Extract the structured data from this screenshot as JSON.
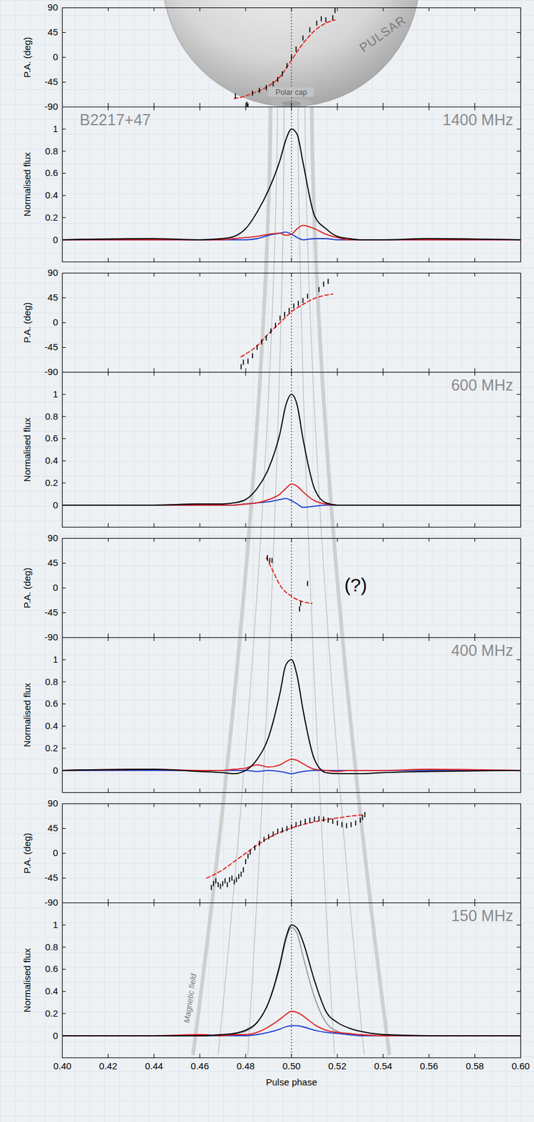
{
  "illustration": {
    "sphere_label": "PULSAR",
    "cap_label": "Polar cap",
    "field_label": "Magnetic field"
  },
  "chart_data": [
    {
      "type": "scatter",
      "ylabel": "P.A. (deg)",
      "xlim": [
        0.4,
        0.6
      ],
      "xticks": [
        {
          "value": 0.4,
          "label": "0.40"
        },
        0.42,
        0.44,
        0.46,
        0.48,
        {
          "value": 0.5,
          "label": "0.50"
        },
        0.52,
        0.54,
        0.56,
        0.58,
        {
          "value": 0.6,
          "label": "0.60"
        }
      ],
      "ylim": [
        -90,
        90
      ],
      "yticks": [
        -90,
        -45,
        0,
        45,
        90
      ],
      "tick_labels": "y",
      "vline": 0.5,
      "series": [
        {
          "type": "scatter",
          "color": "#000000",
          "marker": "tick",
          "x": [
            0.4755,
            0.4805,
            0.481,
            0.483,
            0.486,
            0.489,
            0.492,
            0.494,
            0.496,
            0.498,
            0.5,
            0.502,
            0.505,
            0.508,
            0.511,
            0.513,
            0.515,
            0.518,
            0.519
          ],
          "values": [
            -70,
            -85,
            -88,
            -65,
            -60,
            -55,
            -48,
            -40,
            -30,
            -15,
            0,
            15,
            35,
            50,
            62,
            70,
            68,
            72,
            85
          ]
        },
        {
          "type": "line",
          "color": "#e02020",
          "line_style": "dashed",
          "x": [
            0.475,
            0.48,
            0.485,
            0.49,
            0.495,
            0.5,
            0.505,
            0.51,
            0.515,
            0.519
          ],
          "values": [
            -75,
            -70,
            -62,
            -52,
            -35,
            -5,
            25,
            48,
            62,
            68
          ]
        }
      ]
    },
    {
      "type": "line",
      "title": "1400 MHz",
      "ylabel": "Normalised flux",
      "annotations": [
        {
          "text": "B2217+47"
        }
      ],
      "xlim": [
        0.4,
        0.6
      ],
      "xticks": [
        {
          "value": 0.4,
          "label": "0.40"
        },
        0.42,
        0.44,
        0.46,
        0.48,
        {
          "value": 0.5,
          "label": "0.50"
        },
        0.52,
        0.54,
        0.56,
        0.58,
        {
          "value": 0.6,
          "label": "0.60"
        }
      ],
      "ylim": [
        -0.2,
        1.2
      ],
      "yticks": [
        0,
        0.2,
        0.4,
        0.6,
        0.8,
        1
      ],
      "tick_labels": "y",
      "vline": 0.5,
      "x": [
        0.4,
        0.44,
        0.46,
        0.47,
        0.475,
        0.48,
        0.485,
        0.49,
        0.495,
        0.4975,
        0.5,
        0.5025,
        0.505,
        0.51,
        0.515,
        0.52,
        0.525,
        0.53,
        0.54,
        0.56,
        0.6
      ],
      "series": [
        {
          "color": "#000000",
          "values": [
            0,
            0.01,
            0,
            0.01,
            0.03,
            0.1,
            0.25,
            0.45,
            0.72,
            0.9,
            1.0,
            0.95,
            0.7,
            0.22,
            0.1,
            0.03,
            0.01,
            0,
            0,
            0.01,
            0
          ]
        },
        {
          "color": "#e02020",
          "values": [
            0,
            0,
            0,
            0,
            0.01,
            0.02,
            0.03,
            0.05,
            0.06,
            0.04,
            0.05,
            0.1,
            0.13,
            0.1,
            0.05,
            0.02,
            0,
            0,
            0,
            0,
            0
          ]
        },
        {
          "color": "#1c3fd0",
          "values": [
            0,
            0,
            0,
            0,
            0,
            0,
            0.01,
            0.04,
            0.06,
            0.07,
            0.05,
            0.02,
            0,
            0.01,
            0.01,
            0,
            0,
            0,
            0,
            0,
            0
          ]
        }
      ]
    },
    {
      "type": "scatter",
      "ylabel": "P.A. (deg)",
      "xlim": [
        0.4,
        0.6
      ],
      "xticks": [
        {
          "value": 0.4,
          "label": "0.40"
        },
        0.42,
        0.44,
        0.46,
        0.48,
        {
          "value": 0.5,
          "label": "0.50"
        },
        0.52,
        0.54,
        0.56,
        0.58,
        {
          "value": 0.6,
          "label": "0.60"
        }
      ],
      "ylim": [
        -90,
        90
      ],
      "yticks": [
        -90,
        -45,
        0,
        45,
        90
      ],
      "tick_labels": "y",
      "vline": 0.5,
      "series": [
        {
          "type": "scatter",
          "color": "#000000",
          "marker": "tick",
          "x": [
            0.478,
            0.479,
            0.481,
            0.483,
            0.485,
            0.487,
            0.489,
            0.491,
            0.493,
            0.495,
            0.497,
            0.499,
            0.501,
            0.503,
            0.505,
            0.507,
            0.512,
            0.514,
            0.516
          ],
          "values": [
            -80,
            -72,
            -70,
            -60,
            -45,
            -35,
            -28,
            -15,
            -5,
            8,
            15,
            22,
            30,
            35,
            40,
            48,
            60,
            70,
            75
          ]
        },
        {
          "type": "line",
          "color": "#e02020",
          "line_style": "dashed",
          "x": [
            0.478,
            0.485,
            0.49,
            0.495,
            0.5,
            0.505,
            0.51,
            0.518
          ],
          "values": [
            -62,
            -42,
            -20,
            0,
            20,
            33,
            44,
            52
          ]
        }
      ]
    },
    {
      "type": "line",
      "title": "600 MHz",
      "ylabel": "Normalised flux",
      "xlim": [
        0.4,
        0.6
      ],
      "xticks": [
        {
          "value": 0.4,
          "label": "0.40"
        },
        0.42,
        0.44,
        0.46,
        0.48,
        {
          "value": 0.5,
          "label": "0.50"
        },
        0.52,
        0.54,
        0.56,
        0.58,
        {
          "value": 0.6,
          "label": "0.60"
        }
      ],
      "ylim": [
        -0.2,
        1.2
      ],
      "yticks": [
        0,
        0.2,
        0.4,
        0.6,
        0.8,
        1
      ],
      "tick_labels": "y",
      "vline": 0.5,
      "x": [
        0.4,
        0.44,
        0.46,
        0.47,
        0.475,
        0.48,
        0.485,
        0.49,
        0.495,
        0.4975,
        0.5,
        0.5025,
        0.505,
        0.51,
        0.515,
        0.52,
        0.525,
        0.53,
        0.54,
        0.56,
        0.6
      ],
      "series": [
        {
          "color": "#000000",
          "values": [
            0,
            0,
            0.01,
            0.01,
            0.02,
            0.05,
            0.15,
            0.33,
            0.65,
            0.9,
            1.0,
            0.9,
            0.6,
            0.15,
            0.02,
            0,
            0,
            0,
            0,
            0,
            0
          ]
        },
        {
          "color": "#e02020",
          "values": [
            0,
            0,
            0,
            0,
            0,
            0.01,
            0.02,
            0.05,
            0.1,
            0.15,
            0.19,
            0.17,
            0.12,
            0.04,
            0.01,
            0,
            0,
            0,
            0,
            0,
            0
          ]
        },
        {
          "color": "#1c3fd0",
          "values": [
            0,
            0,
            0,
            0,
            0,
            0.01,
            0.02,
            0.03,
            0.05,
            0.06,
            0.04,
            0.01,
            -0.02,
            -0.01,
            0,
            0,
            0,
            0,
            0,
            0,
            0
          ]
        }
      ]
    },
    {
      "type": "scatter",
      "ylabel": "P.A. (deg)",
      "annotations": [
        {
          "text": "(?)",
          "x": 0.528,
          "y": 5
        }
      ],
      "xlim": [
        0.4,
        0.6
      ],
      "xticks": [
        {
          "value": 0.4,
          "label": "0.40"
        },
        0.42,
        0.44,
        0.46,
        0.48,
        {
          "value": 0.5,
          "label": "0.50"
        },
        0.52,
        0.54,
        0.56,
        0.58,
        {
          "value": 0.6,
          "label": "0.60"
        }
      ],
      "ylim": [
        -90,
        90
      ],
      "yticks": [
        -90,
        -45,
        0,
        45,
        90
      ],
      "tick_labels": "y",
      "vline": 0.5,
      "series": [
        {
          "type": "scatter",
          "color": "#000000",
          "marker": "tick",
          "x": [
            0.4895,
            0.4905,
            0.4915,
            0.5035,
            0.504,
            0.507
          ],
          "values": [
            55,
            50,
            50,
            -38,
            -28,
            8
          ]
        },
        {
          "type": "line",
          "color": "#e02020",
          "line_style": "dashed",
          "x": [
            0.489,
            0.492,
            0.495,
            0.5,
            0.505,
            0.509
          ],
          "values": [
            55,
            30,
            5,
            -15,
            -25,
            -28
          ]
        }
      ]
    },
    {
      "type": "line",
      "title": "400 MHz",
      "ylabel": "Normalised flux",
      "xlim": [
        0.4,
        0.6
      ],
      "xticks": [
        {
          "value": 0.4,
          "label": "0.40"
        },
        0.42,
        0.44,
        0.46,
        0.48,
        {
          "value": 0.5,
          "label": "0.50"
        },
        0.52,
        0.54,
        0.56,
        0.58,
        {
          "value": 0.6,
          "label": "0.60"
        }
      ],
      "ylim": [
        -0.2,
        1.2
      ],
      "yticks": [
        0,
        0.2,
        0.4,
        0.6,
        0.8,
        1
      ],
      "tick_labels": "y",
      "vline": 0.5,
      "x": [
        0.4,
        0.44,
        0.46,
        0.47,
        0.475,
        0.48,
        0.485,
        0.49,
        0.495,
        0.4975,
        0.5,
        0.5025,
        0.505,
        0.51,
        0.515,
        0.52,
        0.525,
        0.53,
        0.54,
        0.56,
        0.6
      ],
      "series": [
        {
          "color": "#000000",
          "values": [
            0,
            0.01,
            -0.01,
            -0.02,
            -0.03,
            0,
            0.1,
            0.3,
            0.7,
            0.95,
            1.0,
            0.85,
            0.55,
            0.1,
            -0.02,
            -0.03,
            -0.03,
            -0.03,
            -0.02,
            -0.01,
            0
          ]
        },
        {
          "color": "#e02020",
          "values": [
            0,
            0.01,
            0,
            0,
            0.01,
            0.02,
            0.05,
            0.03,
            0.05,
            0.08,
            0.1,
            0.09,
            0.06,
            0.01,
            0,
            -0.01,
            0,
            0,
            0,
            0.01,
            0
          ]
        },
        {
          "color": "#1c3fd0",
          "values": [
            0,
            0,
            0,
            0,
            0,
            0,
            -0.01,
            0,
            -0.01,
            -0.02,
            -0.03,
            -0.02,
            -0.01,
            0,
            0,
            0,
            0,
            0,
            0,
            0,
            0
          ]
        }
      ]
    },
    {
      "type": "scatter",
      "ylabel": "P.A. (deg)",
      "xlim": [
        0.4,
        0.6
      ],
      "xticks": [
        {
          "value": 0.4,
          "label": "0.40"
        },
        0.42,
        0.44,
        0.46,
        0.48,
        {
          "value": 0.5,
          "label": "0.50"
        },
        0.52,
        0.54,
        0.56,
        0.58,
        {
          "value": 0.6,
          "label": "0.60"
        }
      ],
      "ylim": [
        -90,
        90
      ],
      "yticks": [
        -90,
        -45,
        0,
        45,
        90
      ],
      "tick_labels": "y",
      "vline": 0.5,
      "series": [
        {
          "type": "scatter",
          "color": "#000000",
          "marker": "tick",
          "x": [
            0.465,
            0.466,
            0.467,
            0.468,
            0.469,
            0.47,
            0.471,
            0.472,
            0.473,
            0.474,
            0.475,
            0.476,
            0.477,
            0.478,
            0.479,
            0.48,
            0.481,
            0.482,
            0.484,
            0.486,
            0.488,
            0.49,
            0.492,
            0.494,
            0.496,
            0.498,
            0.5,
            0.502,
            0.504,
            0.506,
            0.508,
            0.51,
            0.512,
            0.514,
            0.516,
            0.518,
            0.52,
            0.522,
            0.524,
            0.526,
            0.528,
            0.53,
            0.531,
            0.532
          ],
          "values": [
            -62,
            -55,
            -50,
            -57,
            -60,
            -55,
            -50,
            -57,
            -48,
            -45,
            -52,
            -48,
            -42,
            -38,
            -30,
            -15,
            -5,
            2,
            10,
            18,
            25,
            30,
            35,
            40,
            42,
            45,
            48,
            52,
            55,
            58,
            60,
            62,
            63,
            62,
            60,
            58,
            55,
            52,
            50,
            52,
            55,
            60,
            65,
            70
          ]
        },
        {
          "type": "line",
          "color": "#e02020",
          "line_style": "dashed",
          "x": [
            0.463,
            0.47,
            0.475,
            0.48,
            0.485,
            0.49,
            0.495,
            0.5,
            0.505,
            0.51,
            0.515,
            0.52,
            0.525,
            0.532
          ],
          "values": [
            -45,
            -30,
            -15,
            0,
            15,
            28,
            38,
            46,
            52,
            57,
            61,
            64,
            67,
            70
          ]
        }
      ]
    },
    {
      "type": "line",
      "title": "150 MHz",
      "ylabel": "Normalised flux",
      "xlabel": "Pulse phase",
      "xlim": [
        0.4,
        0.6
      ],
      "xticks": [
        {
          "value": 0.4,
          "label": "0.40"
        },
        0.42,
        0.44,
        0.46,
        0.48,
        {
          "value": 0.5,
          "label": "0.50"
        },
        0.52,
        0.54,
        0.56,
        0.58,
        {
          "value": 0.6,
          "label": "0.60"
        }
      ],
      "ylim": [
        -0.2,
        1.2
      ],
      "yticks": [
        0,
        0.2,
        0.4,
        0.6,
        0.8,
        1
      ],
      "vline": 0.5,
      "x": [
        0.4,
        0.44,
        0.46,
        0.47,
        0.475,
        0.48,
        0.485,
        0.49,
        0.495,
        0.4975,
        0.5,
        0.5025,
        0.505,
        0.51,
        0.515,
        0.52,
        0.525,
        0.53,
        0.54,
        0.56,
        0.6
      ],
      "series": [
        {
          "color": "#000000",
          "values": [
            0,
            0,
            0,
            0.01,
            0.02,
            0.05,
            0.12,
            0.3,
            0.65,
            0.88,
            1.0,
            0.97,
            0.85,
            0.5,
            0.22,
            0.12,
            0.07,
            0.04,
            0.01,
            0,
            0
          ]
        },
        {
          "color": "#e02020",
          "values": [
            0,
            0,
            0.01,
            0,
            0.01,
            0.01,
            0.03,
            0.08,
            0.15,
            0.19,
            0.22,
            0.21,
            0.18,
            0.1,
            0.05,
            0.03,
            0.02,
            0.01,
            0,
            0,
            0
          ]
        },
        {
          "color": "#1c3fd0",
          "values": [
            0,
            0,
            0,
            0,
            0,
            0,
            0.01,
            0.03,
            0.06,
            0.08,
            0.09,
            0.09,
            0.08,
            0.05,
            0.03,
            0.02,
            0.01,
            0,
            0,
            0,
            0
          ]
        },
        {
          "color": "#9a9a9a",
          "values": [
            0,
            0,
            0,
            0.01,
            0.02,
            0.04,
            0.12,
            0.3,
            0.63,
            0.86,
            0.98,
            0.92,
            0.72,
            0.35,
            0.12,
            0.04,
            0.01,
            0,
            0,
            0,
            0
          ]
        }
      ]
    }
  ]
}
